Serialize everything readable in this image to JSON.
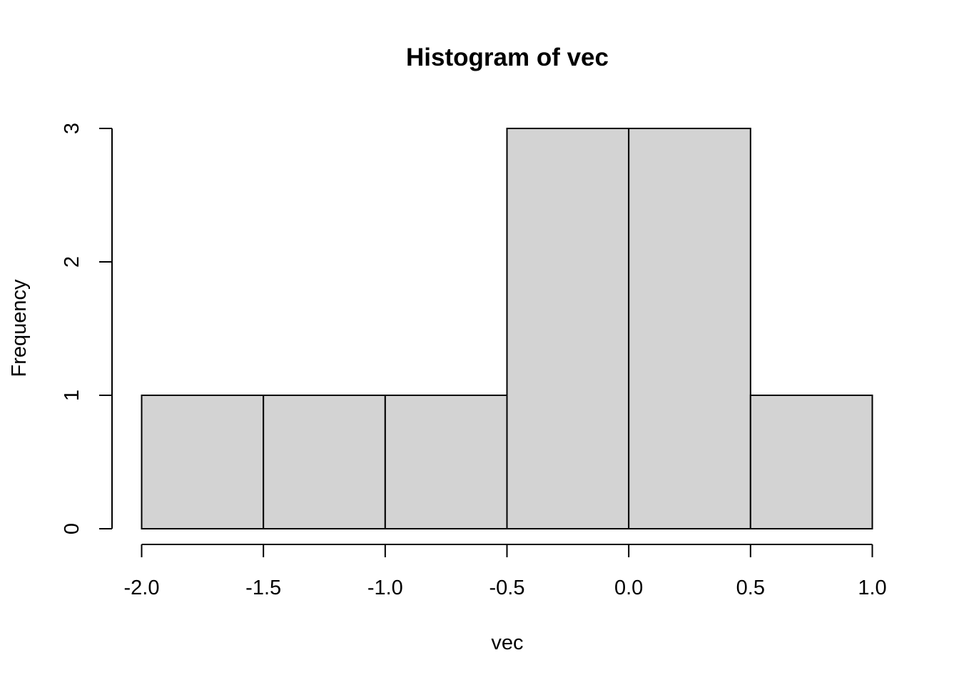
{
  "chart_data": {
    "type": "bar",
    "title": "Histogram of vec",
    "xlabel": "vec",
    "ylabel": "Frequency",
    "bins": [
      {
        "from": -2.0,
        "to": -1.5,
        "count": 1
      },
      {
        "from": -1.5,
        "to": -1.0,
        "count": 1
      },
      {
        "from": -1.0,
        "to": -0.5,
        "count": 1
      },
      {
        "from": -0.5,
        "to": 0.0,
        "count": 3
      },
      {
        "from": 0.0,
        "to": 0.5,
        "count": 3
      },
      {
        "from": 0.5,
        "to": 1.0,
        "count": 1
      }
    ],
    "xlim": [
      -2.0,
      1.0
    ],
    "ylim": [
      0,
      3
    ],
    "x_ticks": [
      "-2.0",
      "-1.5",
      "-1.0",
      "-0.5",
      "0.0",
      "0.5",
      "1.0"
    ],
    "y_ticks": [
      "0",
      "1",
      "2",
      "3"
    ],
    "grid": false,
    "bar_color": "#d3d3d3",
    "edge_color": "#000000"
  }
}
